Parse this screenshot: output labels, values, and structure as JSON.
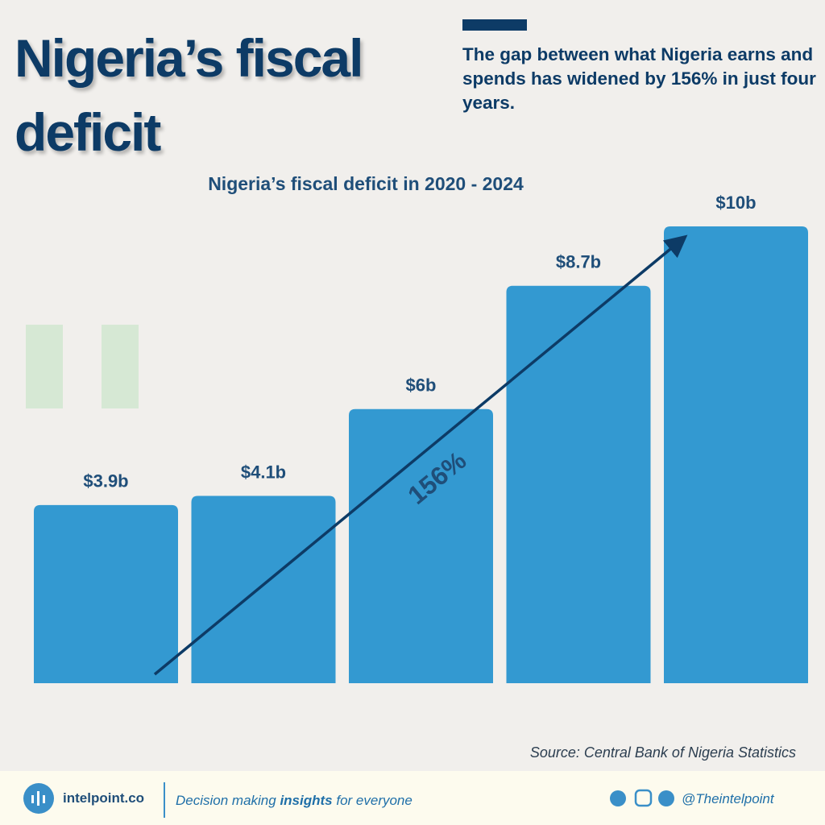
{
  "title": "Nigeria’s fiscal deficit",
  "subtitle": "The gap between what Nigeria earns and spends has widened by 156% in just four years.",
  "chart_data": {
    "type": "bar",
    "title": "Nigeria’s fiscal deficit in 2020 - 2024",
    "values": [
      3.9,
      4.1,
      6,
      8.7,
      10
    ],
    "value_labels": [
      "$3.9b",
      "$4.1b",
      "$6b",
      "$8.7b",
      "$10b"
    ],
    "color": "#3399d1",
    "annotation": "156%",
    "source": "Source: Central Bank of Nigeria Statistics"
  },
  "footer": {
    "brand": "intelpoint.co",
    "tagline": [
      "Decision making ",
      "insights",
      " for everyone"
    ],
    "handle": "@Theintelpoint"
  }
}
